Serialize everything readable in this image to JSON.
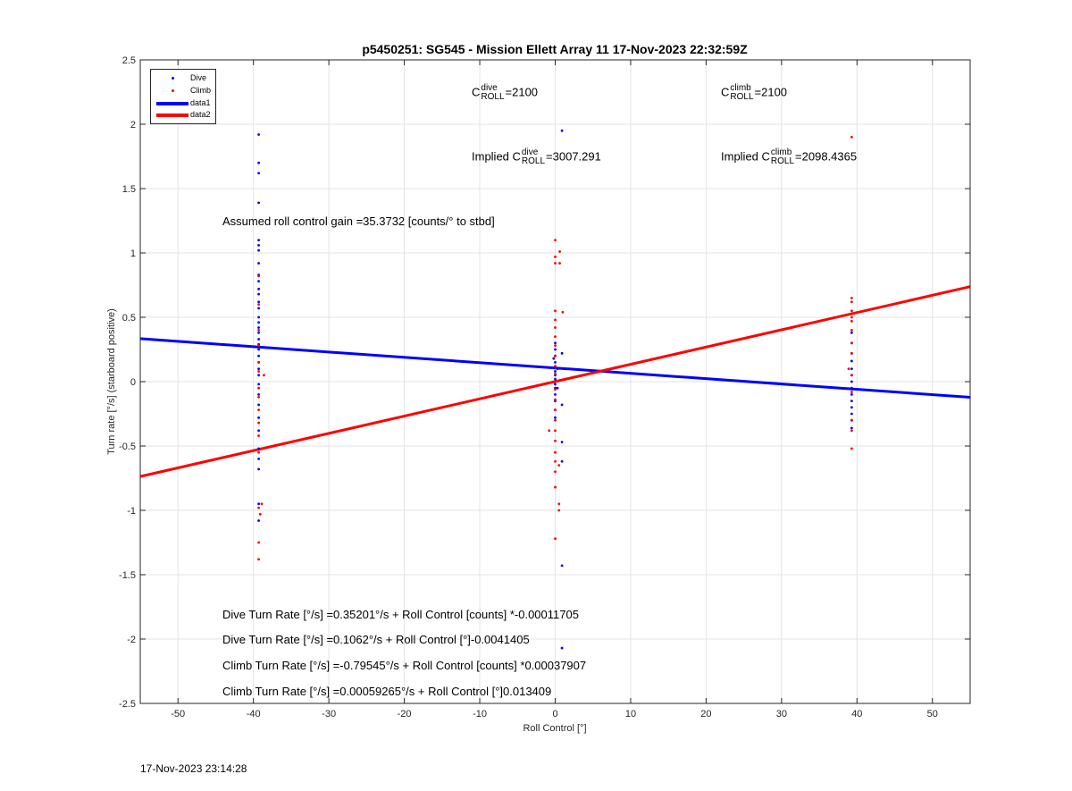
{
  "chart_data": {
    "type": "scatter",
    "title": "p5450251: SG545 - Mission Ellett Array 11 17-Nov-2023 22:32:59Z",
    "xlabel": "Roll Control [°]",
    "ylabel": "Turn rate [°/s] (starboard positive)",
    "xlim": [
      -55,
      55
    ],
    "ylim": [
      -2.5,
      2.5
    ],
    "xticks": [
      -50,
      -40,
      -30,
      -20,
      -10,
      0,
      10,
      20,
      30,
      40,
      50
    ],
    "yticks": [
      -2.5,
      -2,
      -1.5,
      -1,
      -0.5,
      0,
      0.5,
      1,
      1.5,
      2,
      2.5
    ],
    "grid": true,
    "legend_position": "top-left",
    "legend": [
      "Dive",
      "Climb",
      "data1",
      "data2"
    ],
    "series": [
      {
        "name": "Dive",
        "kind": "points",
        "color": "#0000ff",
        "points": [
          [
            -39.3,
            1.92
          ],
          [
            -39.3,
            1.7
          ],
          [
            -39.3,
            1.62
          ],
          [
            -39.3,
            1.39
          ],
          [
            -39.3,
            1.1
          ],
          [
            -39.3,
            1.06
          ],
          [
            -39.3,
            1.02
          ],
          [
            -39.3,
            0.92
          ],
          [
            -39.3,
            0.83
          ],
          [
            -39.3,
            0.78
          ],
          [
            -39.3,
            0.72
          ],
          [
            -39.3,
            0.68
          ],
          [
            -39.3,
            0.62
          ],
          [
            -39.3,
            0.57
          ],
          [
            -39.3,
            0.5
          ],
          [
            -39.3,
            0.46
          ],
          [
            -39.3,
            0.42
          ],
          [
            -39.3,
            0.38
          ],
          [
            -39.3,
            0.33
          ],
          [
            -39.3,
            0.29
          ],
          [
            -39.3,
            0.25
          ],
          [
            -39.3,
            0.2
          ],
          [
            -39.3,
            0.15
          ],
          [
            -39.3,
            0.1
          ],
          [
            -39.3,
            0.05
          ],
          [
            -39.3,
            -0.02
          ],
          [
            -39.3,
            -0.1
          ],
          [
            -39.3,
            -0.18
          ],
          [
            -39.3,
            -0.28
          ],
          [
            -39.3,
            -0.38
          ],
          [
            -39.3,
            -0.52
          ],
          [
            -39.3,
            -0.6
          ],
          [
            -39.3,
            -0.68
          ],
          [
            -39.3,
            -0.95
          ],
          [
            -39.3,
            -1.08
          ],
          [
            0.0,
            0.3
          ],
          [
            0.0,
            0.25
          ],
          [
            0.0,
            0.2
          ],
          [
            0.0,
            0.15
          ],
          [
            0.0,
            0.12
          ],
          [
            0.0,
            0.08
          ],
          [
            0.0,
            0.05
          ],
          [
            0.0,
            0.02
          ],
          [
            0.0,
            -0.02
          ],
          [
            0.0,
            -0.05
          ],
          [
            0.0,
            -0.1
          ],
          [
            0.0,
            -0.15
          ],
          [
            0.0,
            -0.22
          ],
          [
            0.0,
            -0.28
          ],
          [
            -0.2,
            0.18
          ],
          [
            0.3,
            0.1
          ],
          [
            0.3,
            -0.05
          ],
          [
            0.9,
            1.95
          ],
          [
            0.9,
            0.22
          ],
          [
            0.9,
            -0.18
          ],
          [
            0.9,
            -0.47
          ],
          [
            0.9,
            -0.62
          ],
          [
            0.9,
            -1.43
          ],
          [
            0.9,
            -2.07
          ],
          [
            39.3,
            0.38
          ],
          [
            39.3,
            0.3
          ],
          [
            39.3,
            0.22
          ],
          [
            39.3,
            0.16
          ],
          [
            39.3,
            0.1
          ],
          [
            39.3,
            0.05
          ],
          [
            39.3,
            0.0
          ],
          [
            39.3,
            -0.05
          ],
          [
            39.3,
            -0.1
          ],
          [
            39.3,
            -0.15
          ],
          [
            39.3,
            -0.2
          ],
          [
            39.3,
            -0.25
          ],
          [
            39.3,
            -0.3
          ],
          [
            39.3,
            -0.36
          ]
        ]
      },
      {
        "name": "Climb",
        "kind": "points",
        "color": "#ff0000",
        "points": [
          [
            -39.3,
            0.82
          ],
          [
            -39.3,
            0.6
          ],
          [
            -39.3,
            0.4
          ],
          [
            -39.3,
            0.28
          ],
          [
            -39.3,
            0.15
          ],
          [
            -39.3,
            0.08
          ],
          [
            -38.6,
            0.05
          ],
          [
            -39.3,
            -0.05
          ],
          [
            -39.3,
            -0.12
          ],
          [
            -39.3,
            -0.22
          ],
          [
            -39.3,
            -0.32
          ],
          [
            -39.3,
            -0.42
          ],
          [
            -39.3,
            -0.55
          ],
          [
            -39.3,
            -0.98
          ],
          [
            -38.9,
            -0.95
          ],
          [
            -39.1,
            -1.03
          ],
          [
            -39.3,
            -1.25
          ],
          [
            -39.3,
            -1.38
          ],
          [
            0.0,
            1.1
          ],
          [
            0.0,
            0.97
          ],
          [
            0.0,
            0.92
          ],
          [
            0.6,
            1.01
          ],
          [
            0.6,
            0.92
          ],
          [
            1.0,
            0.54
          ],
          [
            0.0,
            0.55
          ],
          [
            0.0,
            0.48
          ],
          [
            0.0,
            0.42
          ],
          [
            0.0,
            0.35
          ],
          [
            0.0,
            0.28
          ],
          [
            0.0,
            0.2
          ],
          [
            0.0,
            0.12
          ],
          [
            0.0,
            0.06
          ],
          [
            0.0,
            0.0
          ],
          [
            0.0,
            -0.06
          ],
          [
            0.0,
            -0.14
          ],
          [
            0.0,
            -0.22
          ],
          [
            0.0,
            -0.3
          ],
          [
            0.0,
            -0.38
          ],
          [
            0.0,
            -0.46
          ],
          [
            0.0,
            -0.55
          ],
          [
            0.0,
            -0.62
          ],
          [
            0.0,
            -0.7
          ],
          [
            0.0,
            -0.82
          ],
          [
            0.0,
            -1.22
          ],
          [
            -0.8,
            -0.38
          ],
          [
            0.5,
            -0.65
          ],
          [
            0.5,
            -0.95
          ],
          [
            0.5,
            -1.0
          ],
          [
            39.3,
            0.65
          ],
          [
            39.3,
            0.62
          ],
          [
            39.3,
            0.55
          ],
          [
            39.3,
            0.5
          ],
          [
            39.3,
            0.47
          ],
          [
            39.3,
            0.4
          ],
          [
            39.3,
            0.3
          ],
          [
            39.3,
            0.22
          ],
          [
            38.9,
            0.1
          ],
          [
            39.3,
            0.05
          ],
          [
            39.3,
            -0.08
          ],
          [
            39.3,
            -0.3
          ],
          [
            39.3,
            -0.38
          ],
          [
            39.3,
            -0.52
          ],
          [
            39.3,
            1.9
          ]
        ]
      },
      {
        "name": "data1",
        "kind": "line",
        "color": "#0000ff",
        "points": [
          [
            -55,
            0.3338
          ],
          [
            55,
            -0.1217
          ]
        ]
      },
      {
        "name": "data2",
        "kind": "line",
        "color": "#ff0000",
        "points": [
          [
            -55,
            -0.7369
          ],
          [
            55,
            0.7381
          ]
        ]
      }
    ]
  },
  "annotations": {
    "c_dive_base": "C",
    "c_dive_sup": "dive",
    "c_dive_sub": "ROLL",
    "c_dive_val": "=2100",
    "c_climb_base": "C",
    "c_climb_sup": "climb",
    "c_climb_sub": "ROLL",
    "c_climb_val": "=2100",
    "implied_dive_prefix": "Implied C",
    "implied_dive_sup": "dive",
    "implied_dive_sub": "ROLL",
    "implied_dive_val": "=3007.291",
    "implied_climb_prefix": "Implied C",
    "implied_climb_sup": "climb",
    "implied_climb_sub": "ROLL",
    "implied_climb_val": "=2098.4365",
    "gain": "Assumed roll control gain =35.3732 [counts/° to stbd]",
    "eq1": "Dive Turn Rate [°/s] =0.35201°/s + Roll Control [counts] *-0.00011705",
    "eq2": "Dive Turn Rate [°/s] =0.1062°/s + Roll Control [°]-0.0041405",
    "eq3": "Climb Turn Rate [°/s] =-0.79545°/s + Roll Control [counts] *0.00037907",
    "eq4": "Climb Turn Rate [°/s] =0.00059265°/s + Roll Control [°]0.013409"
  },
  "footer": {
    "timestamp": "17-Nov-2023 23:14:28"
  }
}
